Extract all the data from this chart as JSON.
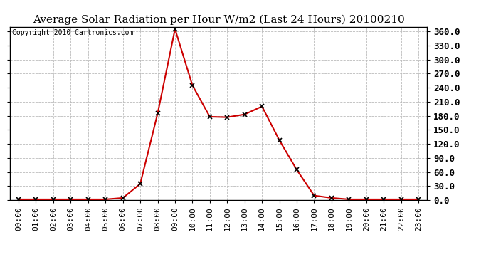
{
  "title": "Average Solar Radiation per Hour W/m2 (Last 24 Hours) 20100210",
  "copyright_text": "Copyright 2010 Cartronics.com",
  "hours": [
    "00:00",
    "01:00",
    "02:00",
    "03:00",
    "04:00",
    "05:00",
    "06:00",
    "07:00",
    "08:00",
    "09:00",
    "10:00",
    "11:00",
    "12:00",
    "13:00",
    "14:00",
    "15:00",
    "16:00",
    "17:00",
    "18:00",
    "19:00",
    "20:00",
    "21:00",
    "22:00",
    "23:00"
  ],
  "values": [
    2,
    2,
    2,
    2,
    2,
    2,
    5,
    35,
    185,
    365,
    245,
    178,
    177,
    183,
    200,
    128,
    65,
    10,
    5,
    2,
    2,
    2,
    2,
    2
  ],
  "line_color": "#cc0000",
  "marker": "x",
  "marker_color": "#000000",
  "background_color": "#ffffff",
  "grid_color": "#bbbbbb",
  "ylim": [
    0,
    370
  ],
  "yticks": [
    0.0,
    30.0,
    60.0,
    90.0,
    120.0,
    150.0,
    180.0,
    210.0,
    240.0,
    270.0,
    300.0,
    330.0,
    360.0
  ],
  "title_fontsize": 11,
  "copyright_fontsize": 7,
  "tick_fontsize": 8,
  "ytick_fontsize": 9
}
